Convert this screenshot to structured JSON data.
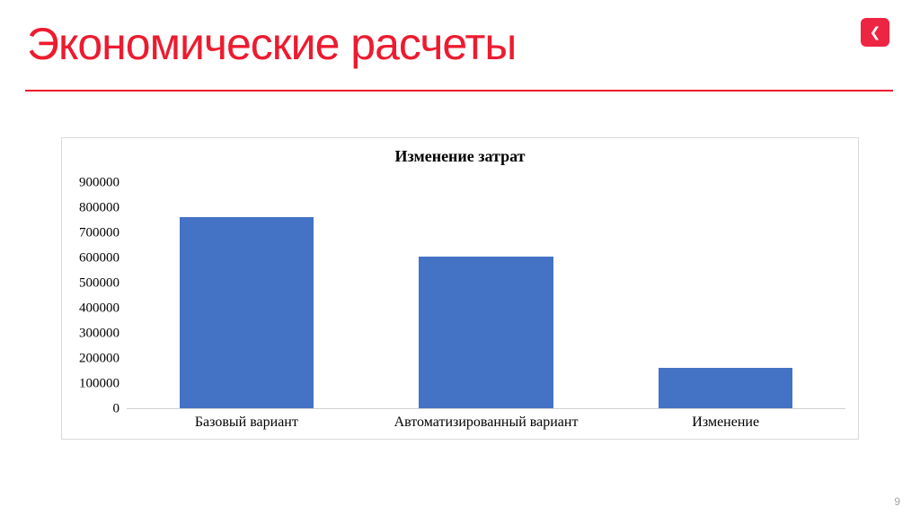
{
  "header": {
    "title": "Экономические расчеты"
  },
  "nav": {
    "back_icon": "❮"
  },
  "footer": {
    "page_number": "9"
  },
  "colors": {
    "accent": "#ed1b2f",
    "bar": "#4472c4"
  },
  "chart_data": {
    "type": "bar",
    "title": "Изменение затрат",
    "categories": [
      "Базовый вариант",
      "Автоматизированный вариант",
      "Изменение"
    ],
    "values": [
      765000,
      605000,
      160000
    ],
    "xlabel": "",
    "ylabel": "",
    "ylim": [
      0,
      900000
    ],
    "ytick_step": 100000,
    "grid": false,
    "legend": false,
    "bar_color": "#4472c4"
  }
}
